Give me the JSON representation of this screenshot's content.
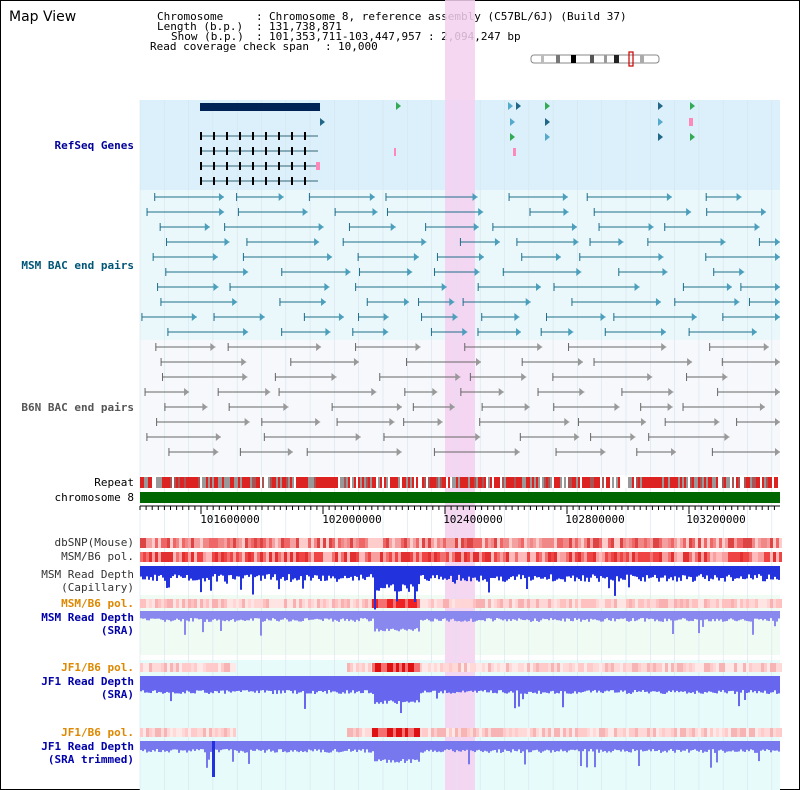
{
  "title": "Map View",
  "info": {
    "chromosome_key": "Chromosome",
    "chromosome_value": "Chromosome 8, reference assembly (C57BL/6J) (Build 37)",
    "length_key": "Length (b.p.)",
    "length_value": "131,738,871",
    "show_key": "Show (b.p.)",
    "show_value": "101,353,711-103,447,957 : 2,094,247 bp",
    "coverage_key": "Read coverage check span",
    "coverage_value": "10,000"
  },
  "tracks": {
    "refseq": "RefSeq Genes",
    "msm_bac": "MSM BAC end pairs",
    "b6n_bac": "B6N BAC end pairs",
    "repeat": "Repeat",
    "chromosome": "chromosome 8",
    "dbsnp": "dbSNP(Mouse)",
    "msm_b6_pol_1": "MSM/B6 pol.",
    "msm_depth_cap_1": "MSM Read Depth",
    "msm_depth_cap_2": "(Capillary)",
    "msm_b6_pol_2": "MSM/B6 pol.",
    "msm_depth_sra_1": "MSM Read Depth",
    "msm_depth_sra_2": "(SRA)",
    "jf1_b6_pol_1": "JF1/B6 pol.",
    "jf1_depth_sra_1": "JF1 Read Depth",
    "jf1_depth_sra_2": "(SRA)",
    "jf1_b6_pol_2": "JF1/B6 pol.",
    "jf1_depth_trim_1": "JF1 Read Depth",
    "jf1_depth_trim_2": "(SRA trimmed)"
  },
  "axis": {
    "ticks": [
      "101600000",
      "102000000",
      "102400000",
      "102800000",
      "103200000"
    ]
  },
  "colors": {
    "refseq_bg": "#dbf0fa",
    "msm_bac_bg": "#eaf8fb",
    "b6n_bac_bg": "#f6f8fb",
    "highlight": "#f5d0f0",
    "refseq_label": "#000099",
    "msm_label": "#005577",
    "b6n_label": "#555555",
    "pol_label": "#dd8800",
    "depth_label": "#0000aa",
    "chromosome_bar": "#006600"
  }
}
